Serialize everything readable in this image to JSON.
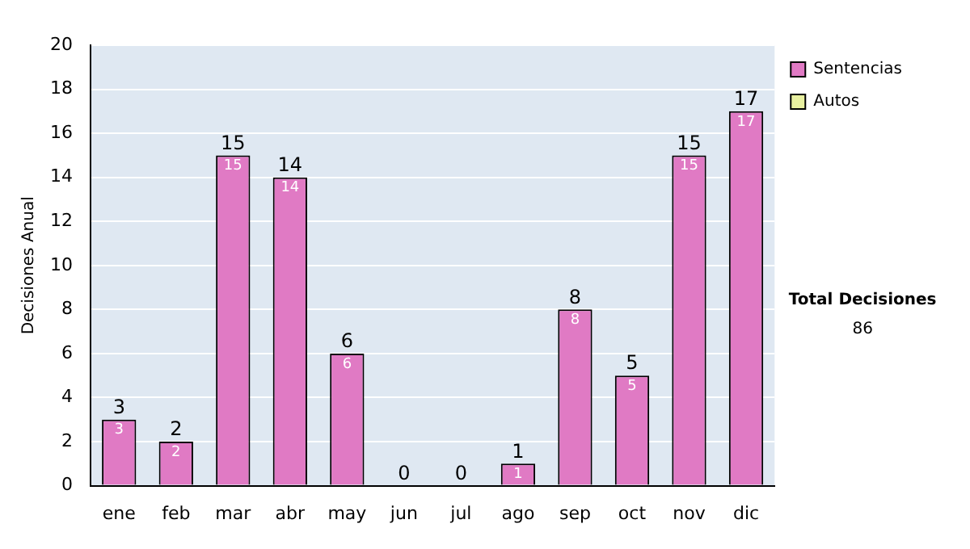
{
  "chart_data": {
    "type": "bar",
    "ylabel": "Decisiones Anual",
    "categories": [
      "ene",
      "feb",
      "mar",
      "abr",
      "may",
      "jun",
      "jul",
      "ago",
      "sep",
      "oct",
      "nov",
      "dic"
    ],
    "series": [
      {
        "name": "Sentencias",
        "color": "#e07ac4",
        "values": [
          3,
          2,
          15,
          14,
          6,
          0,
          0,
          1,
          8,
          5,
          15,
          17
        ],
        "value_labels": [
          "3",
          "2",
          "15",
          "14",
          "6",
          null,
          null,
          "1",
          "8",
          "5",
          "15",
          "17"
        ]
      },
      {
        "name": "Autos",
        "color": "#e8f0a0",
        "values": [
          0,
          0,
          0,
          0,
          0,
          0,
          0,
          0,
          0,
          0,
          0,
          0
        ]
      }
    ],
    "stacked": true,
    "totals": [
      "3",
      "2",
      "15",
      "14",
      "6",
      "0",
      "0",
      "1",
      "8",
      "5",
      "15",
      "17"
    ],
    "ylim": [
      0,
      20
    ],
    "yticks": [
      0,
      2,
      4,
      6,
      8,
      10,
      12,
      14,
      16,
      18,
      20
    ],
    "grid": "y",
    "legend": "right",
    "annotations": [
      "Total Decisiones",
      "86"
    ]
  }
}
